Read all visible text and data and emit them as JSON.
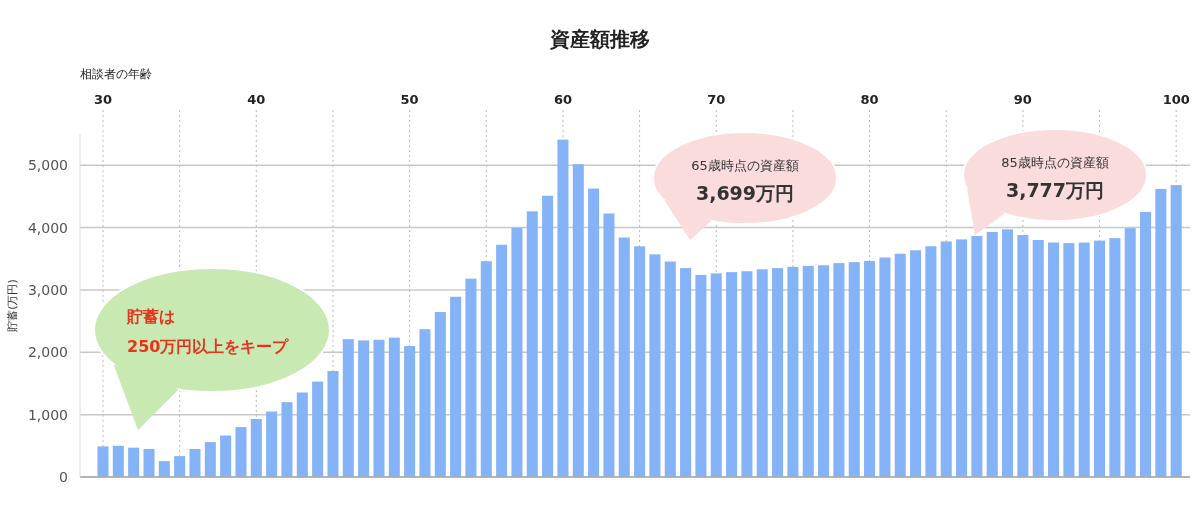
{
  "chart_data": {
    "type": "bar",
    "title": "資産額推移",
    "xlabel": "相談者の年齢",
    "ylabel": "貯蓄(万円)",
    "x": [
      30,
      31,
      32,
      33,
      34,
      35,
      36,
      37,
      38,
      39,
      40,
      41,
      42,
      43,
      44,
      45,
      46,
      47,
      48,
      49,
      50,
      51,
      52,
      53,
      54,
      55,
      56,
      57,
      58,
      59,
      60,
      61,
      62,
      63,
      64,
      65,
      66,
      67,
      68,
      69,
      70,
      71,
      72,
      73,
      74,
      75,
      76,
      77,
      78,
      79,
      80,
      81,
      82,
      83,
      84,
      85,
      86,
      87,
      88,
      89,
      90,
      91,
      92,
      93,
      94,
      95,
      96,
      97,
      98,
      99,
      100
    ],
    "values": [
      490,
      500,
      470,
      450,
      255,
      335,
      450,
      560,
      665,
      800,
      930,
      1050,
      1200,
      1355,
      1530,
      1700,
      2210,
      2190,
      2200,
      2235,
      2100,
      2370,
      2645,
      2890,
      3180,
      3460,
      3725,
      3995,
      4260,
      4510,
      5410,
      5015,
      4625,
      4225,
      3840,
      3699,
      3570,
      3455,
      3350,
      3240,
      3265,
      3285,
      3300,
      3330,
      3350,
      3370,
      3385,
      3395,
      3430,
      3445,
      3465,
      3520,
      3580,
      3635,
      3700,
      3777,
      3810,
      3865,
      3930,
      3970,
      3880,
      3800,
      3760,
      3750,
      3760,
      3790,
      3830,
      3990,
      4250,
      4620,
      4680
    ],
    "color": "#84b3f7",
    "xlim": [
      28.5,
      100.9
    ],
    "xticks": [
      30,
      {
        "value": 35,
        "label": null
      },
      40,
      {
        "value": 45,
        "label": null
      },
      50,
      {
        "value": 55,
        "label": null
      },
      60,
      {
        "value": 65,
        "label": null
      },
      70,
      {
        "value": 75,
        "label": null
      },
      80,
      {
        "value": 85,
        "label": null
      },
      90,
      {
        "value": 95,
        "label": null
      },
      100
    ],
    "ylim": [
      0,
      5500
    ],
    "yticks": [
      0,
      {
        "value": 1000,
        "label": "1,000"
      },
      {
        "value": 2000,
        "label": "2,000"
      },
      {
        "value": 3000,
        "label": "3,000"
      },
      {
        "value": 4000,
        "label": "4,000"
      },
      {
        "value": 5000,
        "label": "5,000"
      }
    ],
    "grid": true,
    "annotations": [
      "貯蓄は\n250万円以上をキープ",
      "65歳時点の資産額\n3,699万円",
      "85歳時点の資産額\n3,777万円"
    ]
  }
}
